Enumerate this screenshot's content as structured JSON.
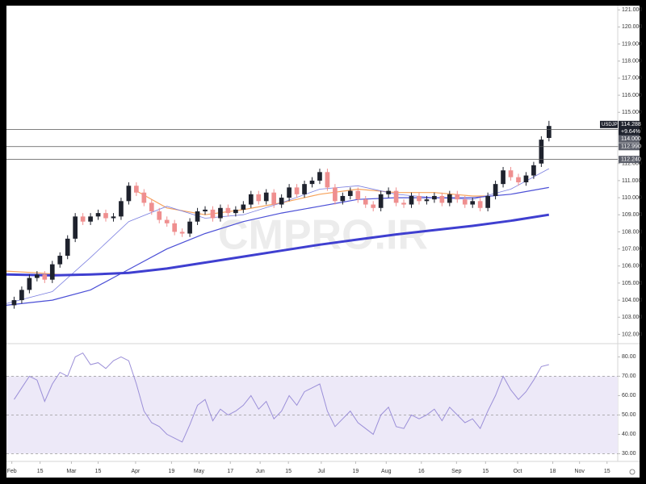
{
  "chart_data": {
    "type": "candlestick",
    "symbol": "USDJPY",
    "watermark": "CMPRO.IR",
    "up_color": "#1e222d",
    "down_color": "#ef8f8f",
    "open": [
      103.7,
      104.0,
      104.6,
      105.3,
      105.5,
      105.2,
      106.1,
      106.6,
      107.6,
      108.9,
      108.6,
      108.9,
      109.1,
      108.8,
      108.9,
      109.8,
      110.7,
      110.3,
      109.7,
      109.2,
      108.7,
      108.5,
      108.0,
      107.9,
      108.6,
      109.2,
      109.3,
      108.8,
      109.4,
      109.1,
      109.3,
      109.6,
      110.2,
      109.8,
      110.3,
      109.6,
      110.0,
      110.6,
      110.2,
      110.8,
      111.0,
      111.5,
      110.6,
      109.8,
      110.1,
      110.4,
      109.9,
      109.6,
      109.4,
      110.2,
      110.4,
      109.7,
      109.6,
      110.1,
      109.8,
      109.9,
      110.1,
      109.7,
      110.2,
      109.9,
      109.6,
      109.8,
      109.4,
      110.1,
      110.8,
      111.6,
      111.2,
      110.9,
      111.3,
      112.0,
      113.5
    ],
    "high": [
      104.2,
      104.8,
      105.5,
      105.7,
      105.7,
      106.3,
      106.8,
      107.8,
      109.1,
      109.1,
      109.1,
      109.3,
      109.3,
      109.1,
      110.0,
      110.9,
      110.9,
      110.5,
      109.9,
      109.4,
      108.9,
      108.7,
      108.2,
      108.8,
      109.4,
      109.5,
      109.5,
      109.6,
      109.6,
      109.5,
      109.8,
      110.4,
      110.4,
      110.5,
      110.5,
      110.2,
      110.8,
      110.8,
      111.0,
      111.2,
      111.7,
      111.7,
      110.8,
      110.3,
      110.6,
      110.6,
      110.1,
      109.8,
      110.4,
      110.6,
      110.6,
      109.9,
      110.3,
      110.3,
      110.1,
      110.3,
      110.3,
      110.4,
      110.4,
      110.1,
      110.0,
      110.0,
      110.3,
      111.0,
      111.8,
      111.8,
      111.4,
      111.5,
      112.1,
      113.6,
      114.5
    ],
    "low": [
      103.5,
      103.8,
      104.4,
      105.1,
      105.0,
      105.0,
      105.9,
      106.4,
      107.4,
      108.4,
      108.4,
      108.7,
      108.6,
      108.6,
      108.7,
      109.6,
      110.1,
      109.5,
      109.0,
      108.5,
      108.3,
      107.8,
      107.7,
      107.7,
      108.4,
      109.0,
      108.6,
      108.6,
      108.9,
      108.9,
      109.1,
      109.4,
      109.6,
      109.6,
      109.4,
      109.4,
      109.8,
      110.0,
      110.0,
      110.6,
      110.8,
      110.4,
      109.6,
      109.6,
      109.9,
      109.7,
      109.4,
      109.2,
      109.2,
      110.0,
      109.5,
      109.4,
      109.4,
      109.6,
      109.6,
      109.7,
      109.5,
      109.5,
      109.7,
      109.4,
      109.4,
      109.2,
      109.2,
      109.9,
      110.6,
      111.0,
      110.7,
      110.7,
      111.1,
      111.8,
      113.3
    ],
    "close": [
      104.0,
      104.6,
      105.3,
      105.5,
      105.2,
      106.1,
      106.6,
      107.6,
      108.9,
      108.6,
      108.9,
      109.1,
      108.8,
      108.9,
      109.8,
      110.7,
      110.3,
      109.7,
      109.2,
      108.7,
      108.5,
      108.0,
      107.9,
      108.6,
      109.2,
      109.3,
      108.8,
      109.4,
      109.1,
      109.3,
      109.6,
      110.2,
      109.8,
      110.3,
      109.6,
      110.0,
      110.6,
      110.2,
      110.8,
      111.0,
      111.5,
      110.6,
      109.8,
      110.1,
      110.4,
      109.9,
      109.6,
      109.4,
      110.2,
      110.4,
      109.7,
      109.6,
      110.1,
      109.8,
      109.9,
      110.1,
      109.7,
      110.2,
      109.9,
      109.6,
      109.8,
      109.4,
      110.1,
      110.8,
      111.6,
      111.2,
      110.9,
      111.3,
      111.9,
      113.4,
      114.2
    ],
    "xlim": [
      -1,
      79
    ],
    "xticks": [
      {
        "value": -0.3,
        "label": "Feb"
      },
      {
        "value": 3.4,
        "label": "15"
      },
      {
        "value": 7.5,
        "label": "Mar"
      },
      {
        "value": 11,
        "label": "15"
      },
      {
        "value": 15.9,
        "label": "Apr"
      },
      {
        "value": 20.6,
        "label": "19"
      },
      {
        "value": 24.2,
        "label": "May"
      },
      {
        "value": 28.3,
        "label": "17"
      },
      {
        "value": 32.2,
        "label": "Jun"
      },
      {
        "value": 35.9,
        "label": "15"
      },
      {
        "value": 40.2,
        "label": "Jul"
      },
      {
        "value": 44.7,
        "label": "19"
      },
      {
        "value": 48.7,
        "label": "Aug"
      },
      {
        "value": 53.3,
        "label": "16"
      },
      {
        "value": 57.9,
        "label": "Sep"
      },
      {
        "value": 61.7,
        "label": "15"
      },
      {
        "value": 65.9,
        "label": "Oct"
      },
      {
        "value": 70.5,
        "label": "18"
      },
      {
        "value": 74,
        "label": "Nov"
      },
      {
        "value": 77.6,
        "label": "15"
      }
    ],
    "ylim": [
      101.5,
      121.2
    ],
    "yticks": [
      {
        "value": 102,
        "label": "102.000"
      },
      {
        "value": 103,
        "label": "103.000"
      },
      {
        "value": 104,
        "label": "104.000"
      },
      {
        "value": 105,
        "label": "105.000"
      },
      {
        "value": 106,
        "label": "106.000"
      },
      {
        "value": 107,
        "label": "107.000"
      },
      {
        "value": 108,
        "label": "108.000"
      },
      {
        "value": 109,
        "label": "109.000"
      },
      {
        "value": 110,
        "label": "110.000"
      },
      {
        "value": 111,
        "label": "111.000"
      },
      {
        "value": 112,
        "label": "112.000"
      },
      {
        "value": 113,
        "label": "113.000"
      },
      {
        "value": 114,
        "label": "114.000"
      },
      {
        "value": 115,
        "label": "115.000"
      },
      {
        "value": 116,
        "label": "116.000"
      },
      {
        "value": 117,
        "label": "117.000"
      },
      {
        "value": 118,
        "label": "118.000"
      },
      {
        "value": 119,
        "label": "119.000"
      },
      {
        "value": 120,
        "label": "120.000"
      },
      {
        "value": 121,
        "label": "121.000"
      }
    ],
    "moving_averages": [
      {
        "color": "#f7a35c",
        "width": 1.2,
        "x": [
          -1,
          3,
          6,
          10,
          16,
          20,
          25,
          30,
          35,
          40,
          45,
          50,
          55,
          60,
          62
        ],
        "values": [
          105.7,
          105.6,
          105.5,
          null,
          110.4,
          109.4,
          109.0,
          109.3,
          109.7,
          110.2,
          110.5,
          110.3,
          110.3,
          110.1,
          110.1
        ]
      },
      {
        "color": "#7b7fe0",
        "width": 0.8,
        "x": [
          -1,
          5,
          10,
          15,
          20,
          25,
          30,
          35,
          40,
          45,
          50,
          55,
          60,
          65,
          70
        ],
        "values": [
          103.8,
          104.5,
          106.5,
          108.6,
          109.5,
          108.8,
          109.0,
          109.7,
          110.5,
          110.7,
          110.2,
          110.0,
          109.9,
          110.5,
          111.7
        ]
      },
      {
        "color": "#4b4fd6",
        "width": 1.2,
        "x": [
          -1,
          5,
          10,
          15,
          20,
          25,
          30,
          35,
          40,
          45,
          50,
          55,
          60,
          65,
          70
        ],
        "values": [
          103.7,
          104.0,
          104.6,
          105.8,
          107.0,
          107.9,
          108.6,
          109.1,
          109.5,
          109.9,
          110.0,
          110.0,
          110.0,
          110.2,
          110.6
        ]
      },
      {
        "color": "#3f3fd0",
        "width": 3,
        "x": [
          -1,
          5,
          10,
          15,
          20,
          25,
          30,
          35,
          40,
          45,
          50,
          55,
          60,
          65,
          70
        ],
        "values": [
          105.5,
          105.45,
          105.5,
          105.6,
          105.85,
          106.2,
          106.55,
          106.9,
          107.25,
          107.55,
          107.85,
          108.1,
          108.35,
          108.65,
          109.0
        ]
      }
    ],
    "last_price": 114.288,
    "change_label": "+9.64%",
    "price_lines": [
      {
        "value": 114,
        "label": "114.000"
      },
      {
        "value": 112.99,
        "label": "112.990"
      },
      {
        "value": 112.24,
        "label": "112.240"
      }
    ],
    "rsi": {
      "color": "#9b8fd8",
      "band_color": "#ede9f8",
      "ylim": [
        26,
        86
      ],
      "yticks": [
        {
          "value": 30,
          "label": "30.00"
        },
        {
          "value": 40,
          "label": "40.00"
        },
        {
          "value": 50,
          "label": "50.00"
        },
        {
          "value": 60,
          "label": "60.00"
        },
        {
          "value": 70,
          "label": "70.00"
        },
        {
          "value": 80,
          "label": "80.00"
        }
      ],
      "levels": [
        70,
        50,
        30
      ],
      "values": [
        58,
        64,
        70,
        68,
        57,
        66,
        72,
        70,
        80,
        82,
        76,
        77,
        74,
        78,
        80,
        78,
        66,
        52,
        46,
        44,
        40,
        38,
        36,
        45,
        55,
        58,
        47,
        53,
        50,
        52,
        55,
        60,
        53,
        57,
        48,
        52,
        60,
        55,
        62,
        64,
        66,
        52,
        44,
        48,
        52,
        46,
        43,
        40,
        50,
        54,
        44,
        43,
        50,
        48,
        50,
        53,
        47,
        54,
        50,
        46,
        48,
        43,
        52,
        60,
        70,
        63,
        58,
        62,
        68,
        75,
        76
      ]
    }
  }
}
